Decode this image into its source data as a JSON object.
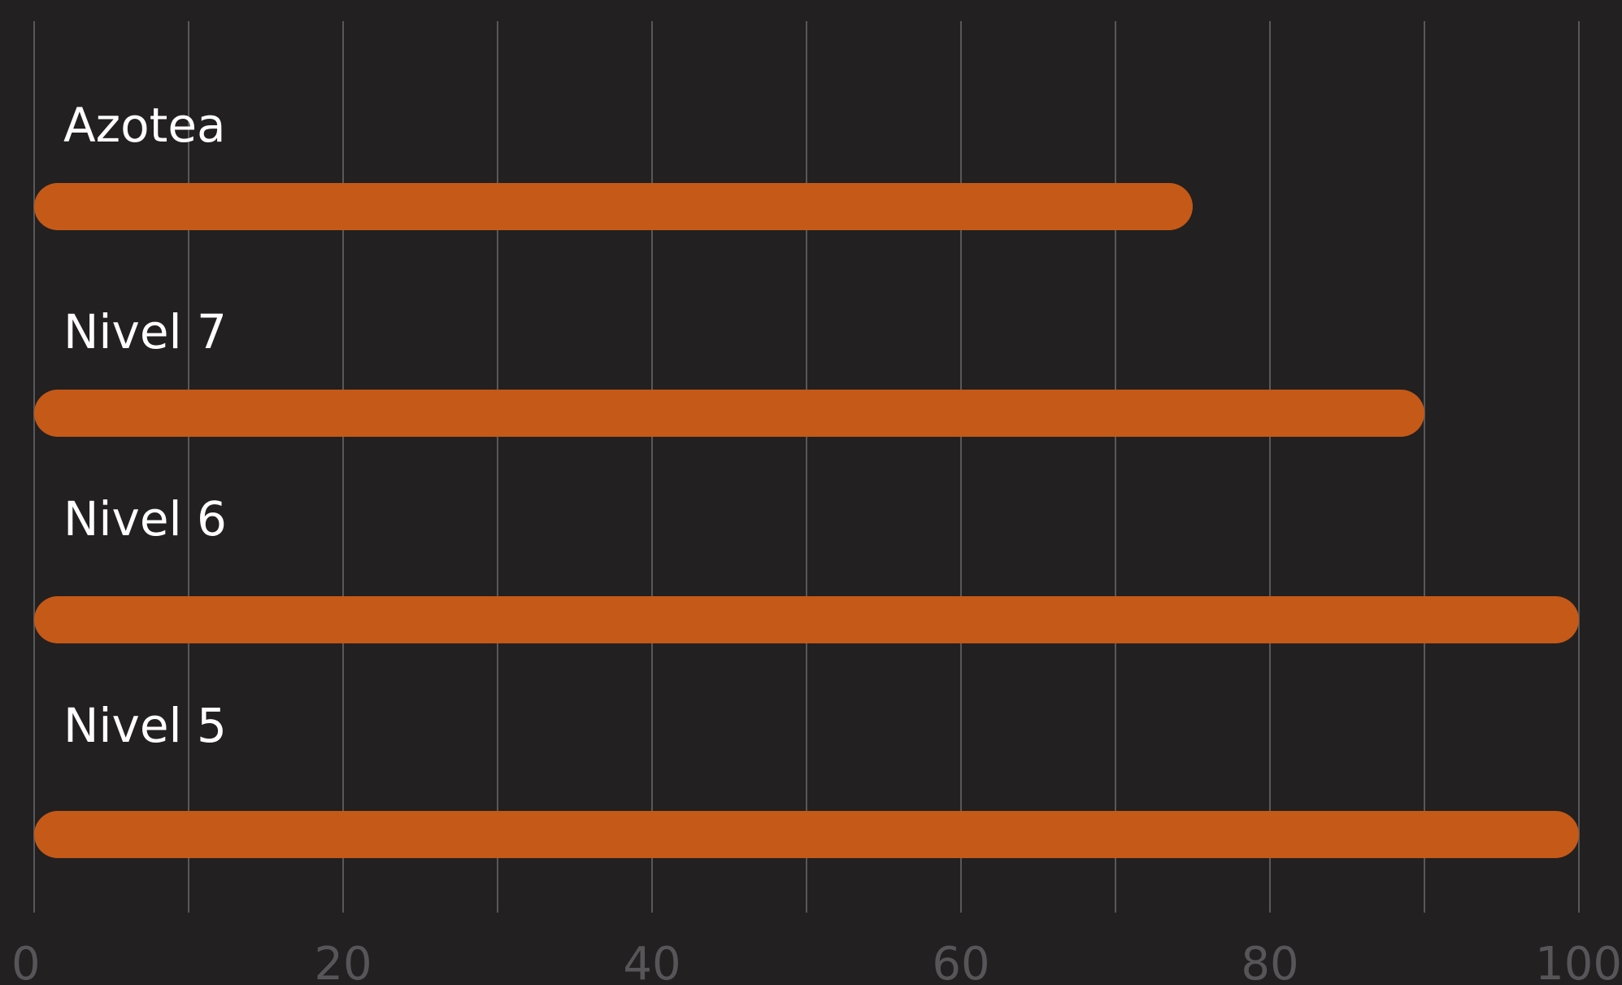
{
  "chart_data": {
    "type": "bar",
    "orientation": "horizontal",
    "categories": [
      "Azotea",
      "Nivel 7",
      "Nivel 6",
      "Nivel 5"
    ],
    "values": [
      75,
      90,
      100,
      100
    ],
    "xlim": [
      0,
      100
    ],
    "xticks": [
      0,
      20,
      40,
      60,
      80,
      100
    ],
    "grid": true,
    "grid_step": 10,
    "title": "",
    "xlabel": "",
    "ylabel": "",
    "colors": {
      "background": "#222021",
      "bar": "#c55917",
      "grid": "#58585a",
      "label": "#ffffff",
      "tick": "#575558"
    }
  }
}
